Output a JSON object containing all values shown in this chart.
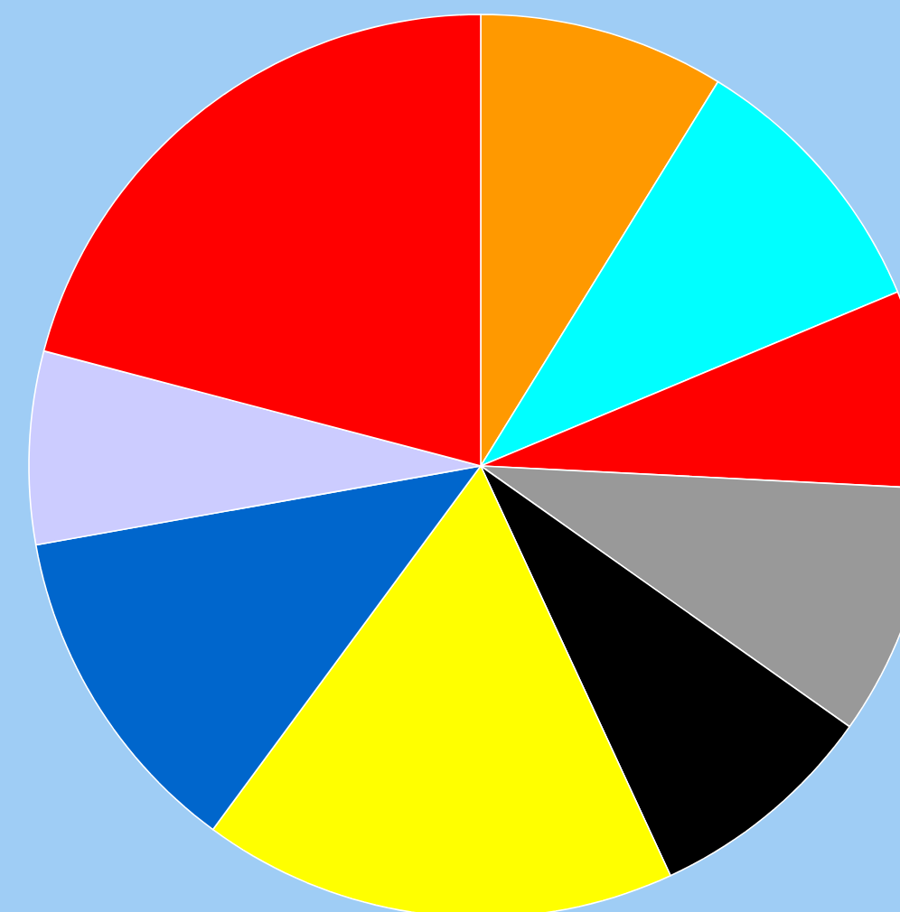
{
  "chart_data": {
    "type": "pie",
    "categories": [
      null,
      null,
      null,
      null,
      null,
      null,
      null,
      null,
      null
    ],
    "values": [
      8.8,
      9.9,
      7.1,
      9.0,
      8.3,
      17.0,
      12.1,
      6.9,
      20.9
    ],
    "colors": [
      "#ff9900",
      "#00ffff",
      "#ff0000",
      "#999999",
      "#000000",
      "#ffff00",
      "#0066cc",
      "#ccccff",
      "#ff0000"
    ]
  }
}
